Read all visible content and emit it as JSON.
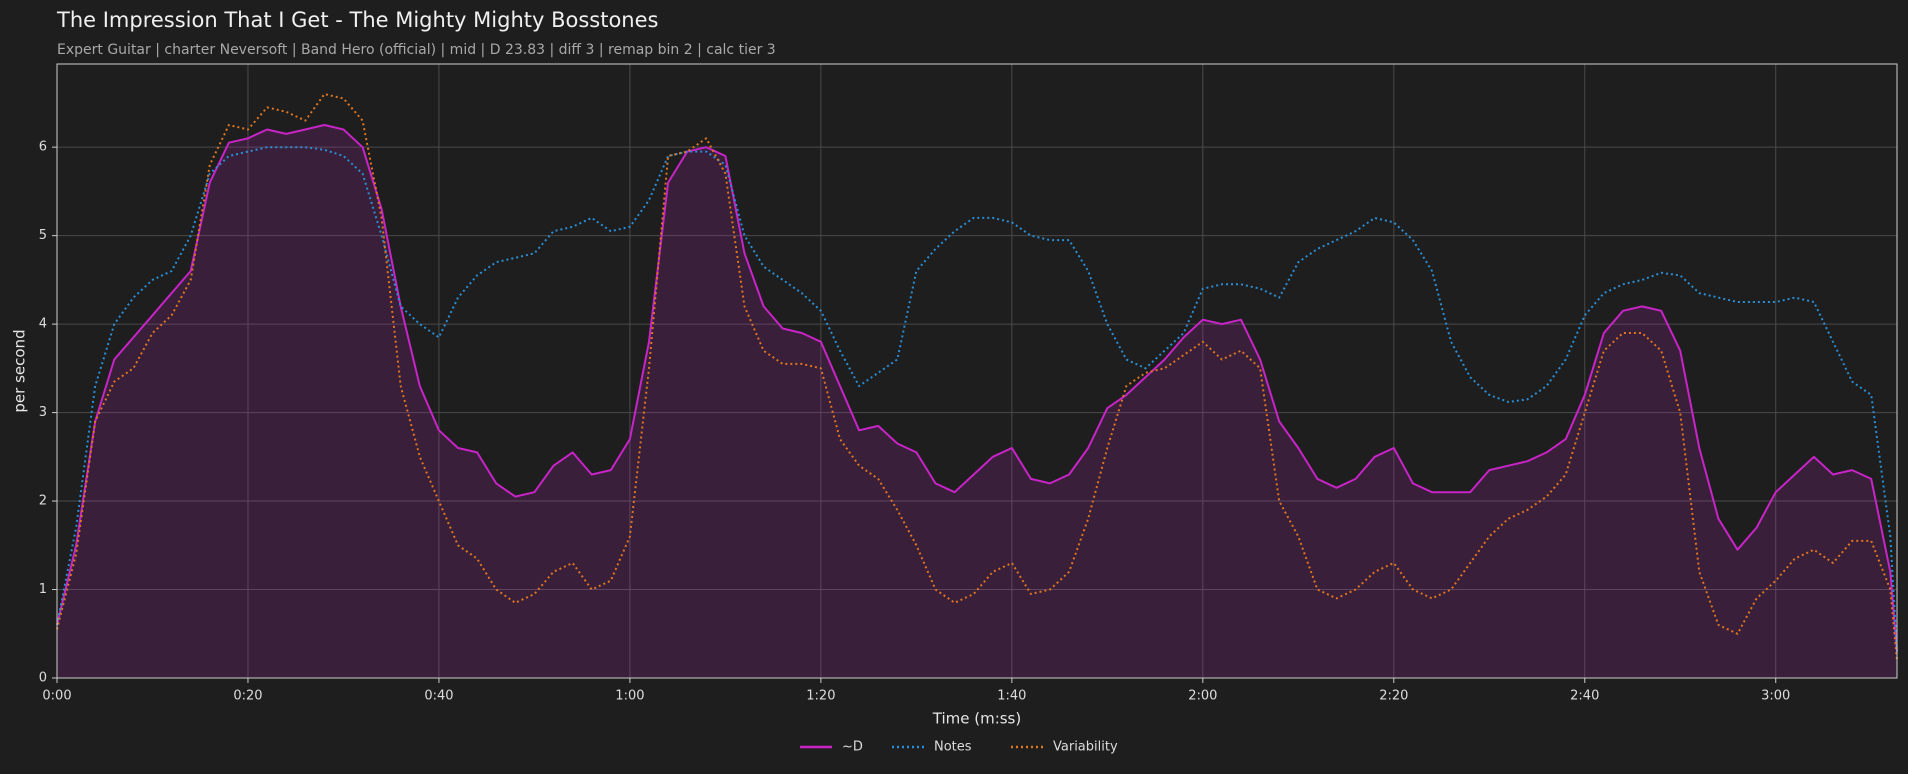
{
  "chart_data": {
    "type": "line",
    "title": "The Impression That I Get - The Mighty Mighty Bosstones",
    "subtitle": "Expert Guitar  |  charter Neversoft  |  Band Hero (official)  |  mid  |  D 23.83  |  diff 3  |  remap bin 2  |  calc tier 3",
    "xlabel": "Time (m:ss)",
    "ylabel": "per second",
    "x": [
      0,
      2,
      4,
      6,
      8,
      10,
      12,
      14,
      16,
      18,
      20,
      22,
      24,
      26,
      28,
      30,
      32,
      34,
      36,
      38,
      40,
      42,
      44,
      46,
      48,
      50,
      52,
      54,
      56,
      58,
      60,
      62,
      64,
      66,
      68,
      70,
      72,
      74,
      76,
      78,
      80,
      82,
      84,
      86,
      88,
      90,
      92,
      94,
      96,
      98,
      100,
      102,
      104,
      106,
      108,
      110,
      112,
      114,
      116,
      118,
      120,
      122,
      124,
      126,
      128,
      130,
      132,
      134,
      136,
      138,
      140,
      142,
      144,
      146,
      148,
      150,
      152,
      154,
      156,
      158,
      160,
      162,
      164,
      166,
      168,
      170,
      172,
      174,
      176,
      178,
      180,
      182,
      184,
      186,
      188,
      190,
      192,
      192.7
    ],
    "series": [
      {
        "name": "~D",
        "color": "#c824c8",
        "style": "solid",
        "fill": true,
        "values": [
          0.6,
          1.5,
          2.9,
          3.6,
          3.85,
          4.1,
          4.35,
          4.6,
          5.6,
          6.05,
          6.1,
          6.2,
          6.15,
          6.2,
          6.25,
          6.2,
          6.0,
          5.3,
          4.2,
          3.3,
          2.8,
          2.6,
          2.55,
          2.2,
          2.05,
          2.1,
          2.4,
          2.55,
          2.3,
          2.35,
          2.7,
          3.8,
          5.6,
          5.95,
          6.0,
          5.9,
          4.8,
          4.2,
          3.95,
          3.9,
          3.8,
          3.3,
          2.8,
          2.85,
          2.65,
          2.55,
          2.2,
          2.1,
          2.3,
          2.5,
          2.6,
          2.25,
          2.2,
          2.3,
          2.6,
          3.05,
          3.2,
          3.4,
          3.6,
          3.85,
          4.05,
          4.0,
          4.05,
          3.6,
          2.9,
          2.6,
          2.25,
          2.15,
          2.25,
          2.5,
          2.6,
          2.2,
          2.1,
          2.1,
          2.1,
          2.35,
          2.4,
          2.45,
          2.55,
          2.7,
          3.2,
          3.9,
          4.15,
          4.2,
          4.15,
          3.7,
          2.6,
          1.8,
          1.45,
          1.7,
          2.1,
          2.3,
          2.5,
          2.3,
          2.35,
          2.25,
          1.2,
          0.3
        ]
      },
      {
        "name": "Notes",
        "color": "#2a8fd6",
        "style": "dotted",
        "values": [
          0.6,
          1.7,
          3.3,
          4.0,
          4.3,
          4.5,
          4.6,
          5.0,
          5.7,
          5.9,
          5.95,
          6.0,
          6.0,
          6.0,
          5.97,
          5.9,
          5.7,
          5.0,
          4.2,
          4.0,
          3.85,
          4.3,
          4.55,
          4.7,
          4.75,
          4.8,
          5.05,
          5.1,
          5.2,
          5.05,
          5.1,
          5.4,
          5.9,
          5.95,
          5.95,
          5.8,
          5.0,
          4.65,
          4.5,
          4.35,
          4.15,
          3.7,
          3.3,
          3.45,
          3.6,
          4.6,
          4.85,
          5.05,
          5.2,
          5.2,
          5.15,
          5.0,
          4.95,
          4.95,
          4.6,
          4.0,
          3.6,
          3.5,
          3.7,
          3.9,
          4.4,
          4.45,
          4.45,
          4.4,
          4.3,
          4.7,
          4.85,
          4.95,
          5.05,
          5.2,
          5.15,
          4.95,
          4.6,
          3.8,
          3.4,
          3.2,
          3.12,
          3.15,
          3.3,
          3.6,
          4.1,
          4.35,
          4.45,
          4.5,
          4.58,
          4.55,
          4.35,
          4.3,
          4.25,
          4.25,
          4.25,
          4.3,
          4.25,
          3.8,
          3.35,
          3.2,
          1.6,
          0.3
        ]
      },
      {
        "name": "Variability",
        "color": "#e0761f",
        "style": "dotted",
        "values": [
          0.55,
          1.4,
          2.9,
          3.35,
          3.5,
          3.9,
          4.1,
          4.5,
          5.8,
          6.25,
          6.2,
          6.45,
          6.4,
          6.3,
          6.6,
          6.55,
          6.3,
          5.2,
          3.3,
          2.5,
          2.0,
          1.5,
          1.35,
          1.0,
          0.85,
          0.95,
          1.2,
          1.3,
          1.0,
          1.1,
          1.6,
          3.5,
          5.9,
          5.95,
          6.1,
          5.7,
          4.2,
          3.7,
          3.55,
          3.55,
          3.5,
          2.7,
          2.4,
          2.25,
          1.9,
          1.5,
          1.0,
          0.85,
          0.95,
          1.2,
          1.3,
          0.95,
          1.0,
          1.2,
          1.8,
          2.6,
          3.3,
          3.45,
          3.5,
          3.65,
          3.8,
          3.6,
          3.7,
          3.5,
          2.0,
          1.6,
          1.0,
          0.9,
          1.0,
          1.2,
          1.3,
          1.0,
          0.9,
          1.0,
          1.3,
          1.6,
          1.8,
          1.9,
          2.05,
          2.3,
          3.0,
          3.7,
          3.9,
          3.9,
          3.7,
          3.0,
          1.2,
          0.6,
          0.5,
          0.9,
          1.1,
          1.35,
          1.45,
          1.3,
          1.55,
          1.55,
          1.0,
          0.2
        ]
      }
    ],
    "xlim": [
      0,
      192.7
    ],
    "ylim": [
      0,
      6.94
    ],
    "xticks": [
      {
        "value": 0,
        "label": "0:00"
      },
      {
        "value": 20,
        "label": "0:20"
      },
      {
        "value": 40,
        "label": "0:40"
      },
      {
        "value": 60,
        "label": "1:00"
      },
      {
        "value": 80,
        "label": "1:20"
      },
      {
        "value": 100,
        "label": "1:40"
      },
      {
        "value": 120,
        "label": "2:00"
      },
      {
        "value": 140,
        "label": "2:20"
      },
      {
        "value": 160,
        "label": "2:40"
      },
      {
        "value": 180,
        "label": "3:00"
      }
    ],
    "yticks": [
      0,
      1,
      2,
      3,
      4,
      5,
      6
    ],
    "grid": true,
    "legend": "bottom"
  }
}
